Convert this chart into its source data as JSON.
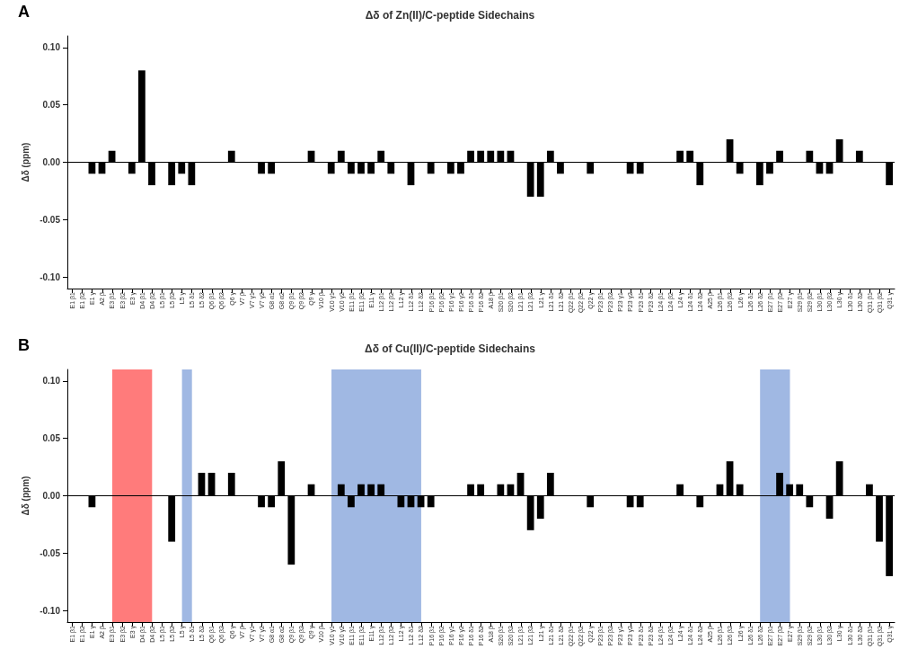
{
  "chart_data": [
    {
      "type": "bar",
      "title": "Δδ of Zn(II)/C-peptide Sidechains",
      "ylabel": "Δδ (ppm)",
      "annotations": [
        "A"
      ],
      "categories": [
        "E1 β1",
        "E1 β2",
        "E1 γ",
        "A2 β",
        "E3 β1",
        "E3 β2",
        "E3 γ",
        "D4 β1",
        "D4 β2",
        "L5 β1",
        "L5 β2",
        "L5 γ",
        "L5 δ1",
        "L5 δ2",
        "Q6 β1",
        "Q6 β2",
        "Q6 γ",
        "V7 β",
        "V7 γ1",
        "V7 γ2",
        "G8 α1",
        "G8 α2",
        "Q9 β1",
        "Q9 β2",
        "Q9 γ",
        "V10 β",
        "V10 γ1",
        "V10 γ2",
        "E11 β1",
        "E11 β2",
        "E11 γ",
        "L12 β1",
        "L12 β2",
        "L12 γ",
        "L12 δ1",
        "L12 δ2",
        "P16 β1",
        "P16 β2",
        "P16 γ1",
        "P16 γ2",
        "P16 δ1",
        "P16 δ2",
        "A18 β",
        "S20 β1",
        "S20 β2",
        "L21 β1",
        "L21 β2",
        "L21 γ",
        "L21 δ1",
        "L21 δ2",
        "Q22 β1",
        "Q22 β2",
        "Q22 γ",
        "P23 β1",
        "P23 β2",
        "P23 γ1",
        "P23 γ2",
        "P23 δ1",
        "P23 δ2",
        "L24 β1",
        "L24 β2",
        "L24 γ",
        "L24 δ1",
        "L24 δ2",
        "A25 β",
        "L26 β1",
        "L26 β2",
        "L26 γ",
        "L26 δ1",
        "L26 δ2",
        "E27 β1",
        "E27 β2",
        "E27 γ",
        "S29 β1",
        "S29 β2",
        "L30 β1",
        "L30 β2",
        "L30 γ",
        "L30 δ1",
        "L30 δ2",
        "Q31 β1",
        "Q31 β2",
        "Q31 γ"
      ],
      "values": [
        0,
        0,
        -0.01,
        -0.01,
        0.01,
        0,
        -0.01,
        0.08,
        -0.02,
        0,
        -0.02,
        -0.01,
        -0.02,
        0,
        0,
        0,
        0.01,
        0,
        0,
        -0.01,
        -0.01,
        0,
        0,
        0,
        0.01,
        0,
        -0.01,
        0.01,
        -0.01,
        -0.01,
        -0.01,
        0.01,
        -0.01,
        0,
        -0.02,
        0,
        -0.01,
        0,
        -0.01,
        -0.01,
        0.01,
        0.01,
        0.01,
        0.01,
        0.01,
        0,
        -0.03,
        -0.03,
        0.01,
        -0.01,
        0,
        0,
        -0.01,
        0,
        0,
        0,
        -0.01,
        -0.01,
        0,
        0,
        0,
        0.01,
        0.01,
        -0.02,
        0,
        0,
        0.02,
        -0.01,
        0,
        -0.02,
        -0.01,
        0.01,
        0,
        0,
        0.01,
        -0.01,
        -0.01,
        0.02,
        0,
        0.01,
        0,
        0,
        -0.02
      ],
      "color": "#000000",
      "ylim": [
        -0.11,
        0.11
      ],
      "yticks": [
        {
          "value": -0.1,
          "label": "-0.10"
        },
        {
          "value": -0.05,
          "label": "-0.05"
        },
        {
          "value": 0,
          "label": "0.00"
        },
        {
          "value": 0.05,
          "label": "0.05"
        },
        {
          "value": 0.1,
          "label": "0.10"
        }
      ],
      "ref_lines": [
        {
          "axis": "y",
          "value": 0,
          "color": "#000000"
        }
      ],
      "grid": false
    },
    {
      "type": "bar",
      "title": "Δδ of Cu(II)/C-peptide Sidechains",
      "ylabel": "Δδ (ppm)",
      "annotations": [
        "B"
      ],
      "categories": [
        "E1 β1",
        "E1 β2",
        "E1 γ",
        "A2 β",
        "E3 β1",
        "E3 β2",
        "E3 γ",
        "D4 β1",
        "D4 β2",
        "L5 β1",
        "L5 β2",
        "L5 γ",
        "L5 δ1",
        "L5 δ2",
        "Q6 β1",
        "Q6 β2",
        "Q6 γ",
        "V7 β",
        "V7 γ1",
        "V7 γ2",
        "G8 α1",
        "G8 α2",
        "Q9 β1",
        "Q9 β2",
        "Q9 γ",
        "V10 β",
        "V10 γ1",
        "V10 γ2",
        "E11 β1",
        "E11 β2",
        "E11 γ",
        "L12 β1",
        "L12 β2",
        "L12 γ",
        "L12 δ1",
        "L12 δ2",
        "P16 β1",
        "P16 β2",
        "P16 γ1",
        "P16 γ2",
        "P16 δ1",
        "P16 δ2",
        "A18 β",
        "S20 β1",
        "S20 β2",
        "L21 β1",
        "L21 β2",
        "L21 γ",
        "L21 δ1",
        "L21 δ2",
        "Q22 β1",
        "Q22 β2",
        "Q22 γ",
        "P23 β1",
        "P23 β2",
        "P23 γ1",
        "P23 γ2",
        "P23 δ1",
        "P23 δ2",
        "L24 β1",
        "L24 β2",
        "L24 γ",
        "L24 δ1",
        "L24 δ2",
        "A25 β",
        "L26 β1",
        "L26 β2",
        "L26 γ",
        "L26 δ1",
        "L26 δ2",
        "E27 β1",
        "E27 β2",
        "E27 γ",
        "S29 β1",
        "S29 β2",
        "L30 β1",
        "L30 β2",
        "L30 γ",
        "L30 δ1",
        "L30 δ2",
        "Q31 β1",
        "Q31 β2",
        "Q31 γ"
      ],
      "values": [
        0,
        0,
        -0.01,
        0,
        0,
        0,
        0,
        0,
        0,
        0,
        -0.04,
        0,
        0,
        0.02,
        0.02,
        0,
        0.02,
        0,
        0,
        -0.01,
        -0.01,
        0.03,
        -0.06,
        0,
        0.01,
        0,
        0,
        0.01,
        -0.01,
        0.01,
        0.01,
        0.01,
        0,
        -0.01,
        -0.01,
        -0.01,
        -0.01,
        0,
        0,
        0,
        0.01,
        0.01,
        0,
        0.01,
        0.01,
        0.02,
        -0.03,
        -0.02,
        0.02,
        0,
        0,
        0,
        -0.01,
        0,
        0,
        0,
        -0.01,
        -0.01,
        0,
        0,
        0,
        0.01,
        0,
        -0.01,
        0,
        0.01,
        0.03,
        0.01,
        0,
        0,
        0,
        0.02,
        0.01,
        0.01,
        -0.01,
        0,
        -0.02,
        0.03,
        0,
        0,
        0.01,
        -0.04,
        -0.07
      ],
      "color": "#000000",
      "ylim": [
        -0.11,
        0.11
      ],
      "yticks": [
        {
          "value": -0.1,
          "label": "-0.10"
        },
        {
          "value": -0.05,
          "label": "-0.05"
        },
        {
          "value": 0,
          "label": "0.00"
        },
        {
          "value": 0.05,
          "label": "0.05"
        },
        {
          "value": 0.1,
          "label": "0.10"
        }
      ],
      "ref_lines": [
        {
          "axis": "y",
          "value": 0,
          "color": "#000000"
        }
      ],
      "bands": [
        {
          "axis": "x",
          "from": "E3 β1",
          "to": "D4 β2",
          "color": "#ff7b7b"
        },
        {
          "axis": "x",
          "from": "L5 γ",
          "to": "L5 δ1",
          "color": "#a0b8e3"
        },
        {
          "axis": "x",
          "from": "V10 γ1",
          "to": "L12 δ2",
          "color": "#a0b8e3"
        },
        {
          "axis": "x",
          "from": "L26 δ2",
          "to": "E27 γ",
          "color": "#a0b8e3"
        }
      ],
      "grid": false
    }
  ]
}
